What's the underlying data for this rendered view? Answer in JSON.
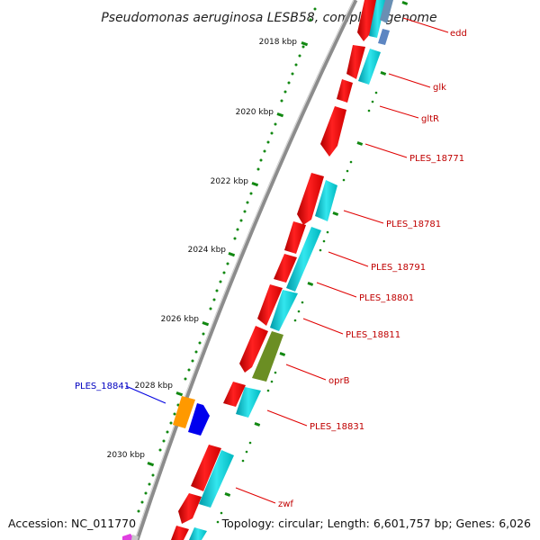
{
  "title": "Pseudomonas aeruginosa LESB58, complete genome",
  "footer": {
    "accession": "Accession: NC_011770",
    "topology": "Topology: circular; Length: 6,601,757 bp; Genes: 6,026"
  },
  "ticks": [
    "2018 kbp",
    "2020 kbp",
    "2022 kbp",
    "2024 kbp",
    "2026 kbp",
    "2028 kbp",
    "2030 kbp"
  ],
  "genes": [
    "edd",
    "glk",
    "gltR",
    "PLES_18771",
    "PLES_18781",
    "PLES_18791",
    "PLES_18801",
    "PLES_18811",
    "oprB",
    "PLES_18831",
    "PLES_18841",
    "zwf"
  ],
  "colors": {
    "red_feature": "#ff0000",
    "cyan_feature": "#00d8d8",
    "olive_feature": "#6b8e23",
    "orange_feature": "#ff9900",
    "blue_feature": "#0000ff",
    "tick_green": "#008800",
    "label_red": "#c00000",
    "label_blue": "#0000c0"
  }
}
